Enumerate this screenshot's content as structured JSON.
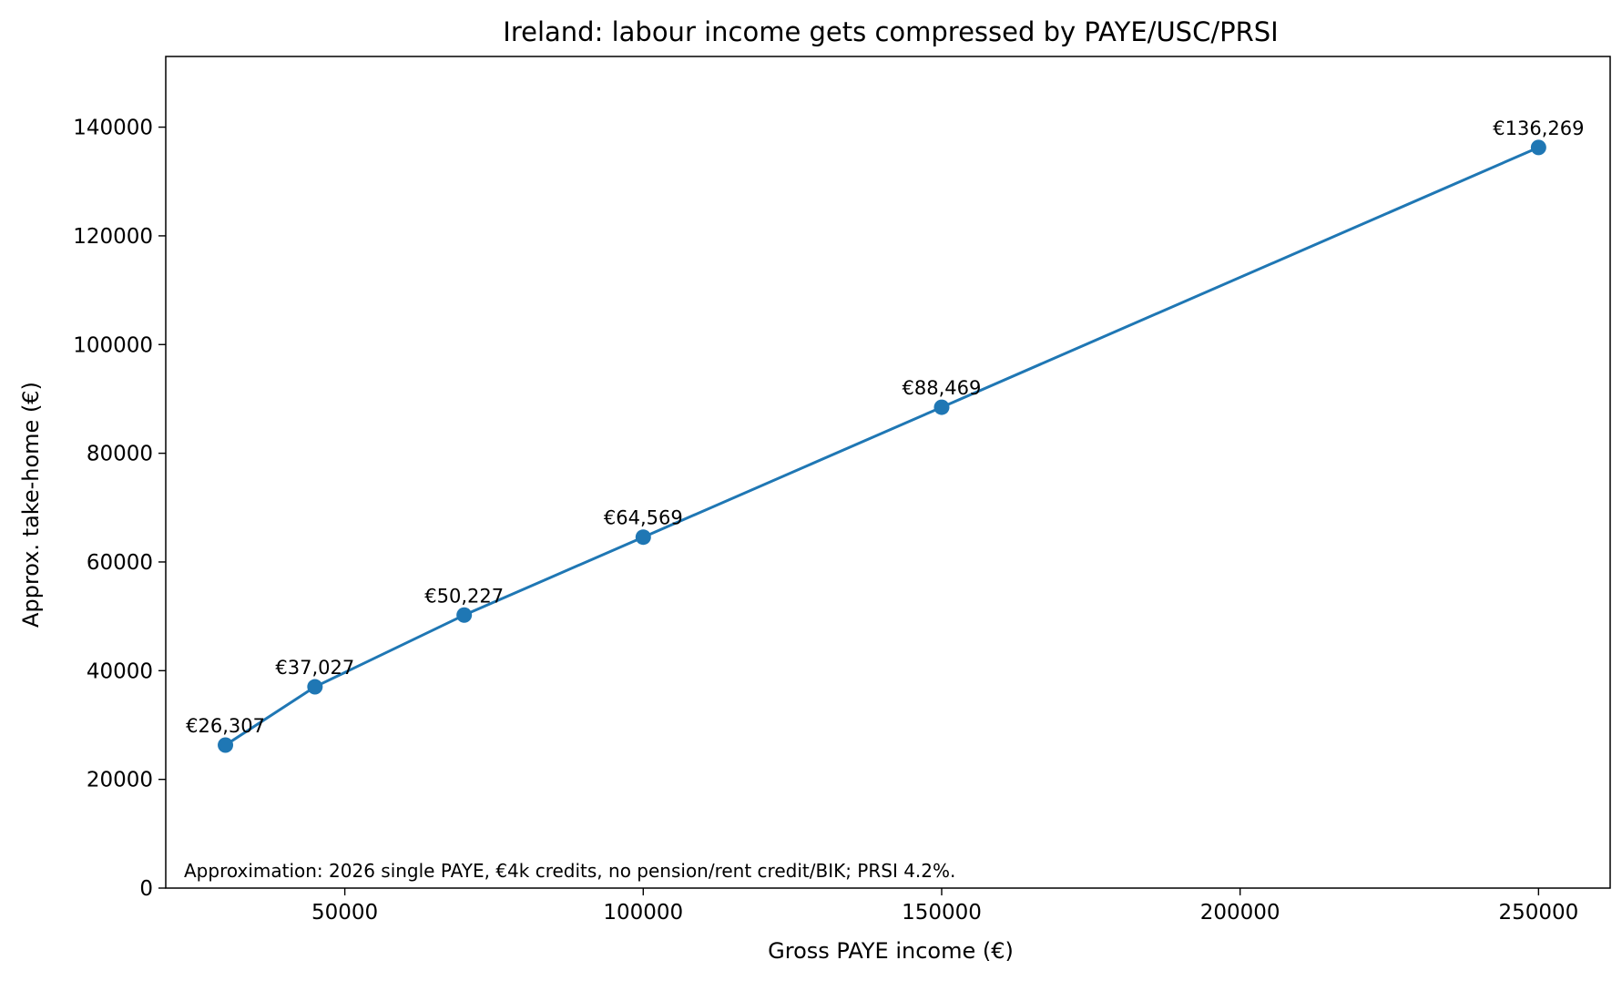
{
  "chart_data": {
    "type": "line",
    "title": "Ireland: labour income gets compressed by PAYE/USC/PRSI",
    "xlabel": "Gross PAYE income (€)",
    "ylabel": "Approx. take-home (€)",
    "xlim": [
      20000,
      262000
    ],
    "ylim": [
      0,
      153000
    ],
    "xticks": [
      50000,
      100000,
      150000,
      200000,
      250000
    ],
    "yticks": [
      0,
      20000,
      40000,
      60000,
      80000,
      100000,
      120000,
      140000
    ],
    "xtick_labels": [
      "50000",
      "100000",
      "150000",
      "200000",
      "250000"
    ],
    "ytick_labels": [
      "0",
      "20000",
      "40000",
      "60000",
      "80000",
      "100000",
      "120000",
      "140000"
    ],
    "grid": false,
    "series": [
      {
        "color": "#1f77b4",
        "marker": "circle",
        "points": [
          {
            "x": 30000,
            "y": 26307,
            "label": "€26,307"
          },
          {
            "x": 45000,
            "y": 37027,
            "label": "€37,027"
          },
          {
            "x": 70000,
            "y": 50227,
            "label": "€50,227"
          },
          {
            "x": 100000,
            "y": 64569,
            "label": "€64,569"
          },
          {
            "x": 150000,
            "y": 88469,
            "label": "€88,469"
          },
          {
            "x": 250000,
            "y": 136269,
            "label": "€136,269"
          }
        ]
      }
    ],
    "annotation": "Approximation: 2026 single PAYE, €4k credits, no pension/rent credit/BIK; PRSI 4.2%."
  }
}
